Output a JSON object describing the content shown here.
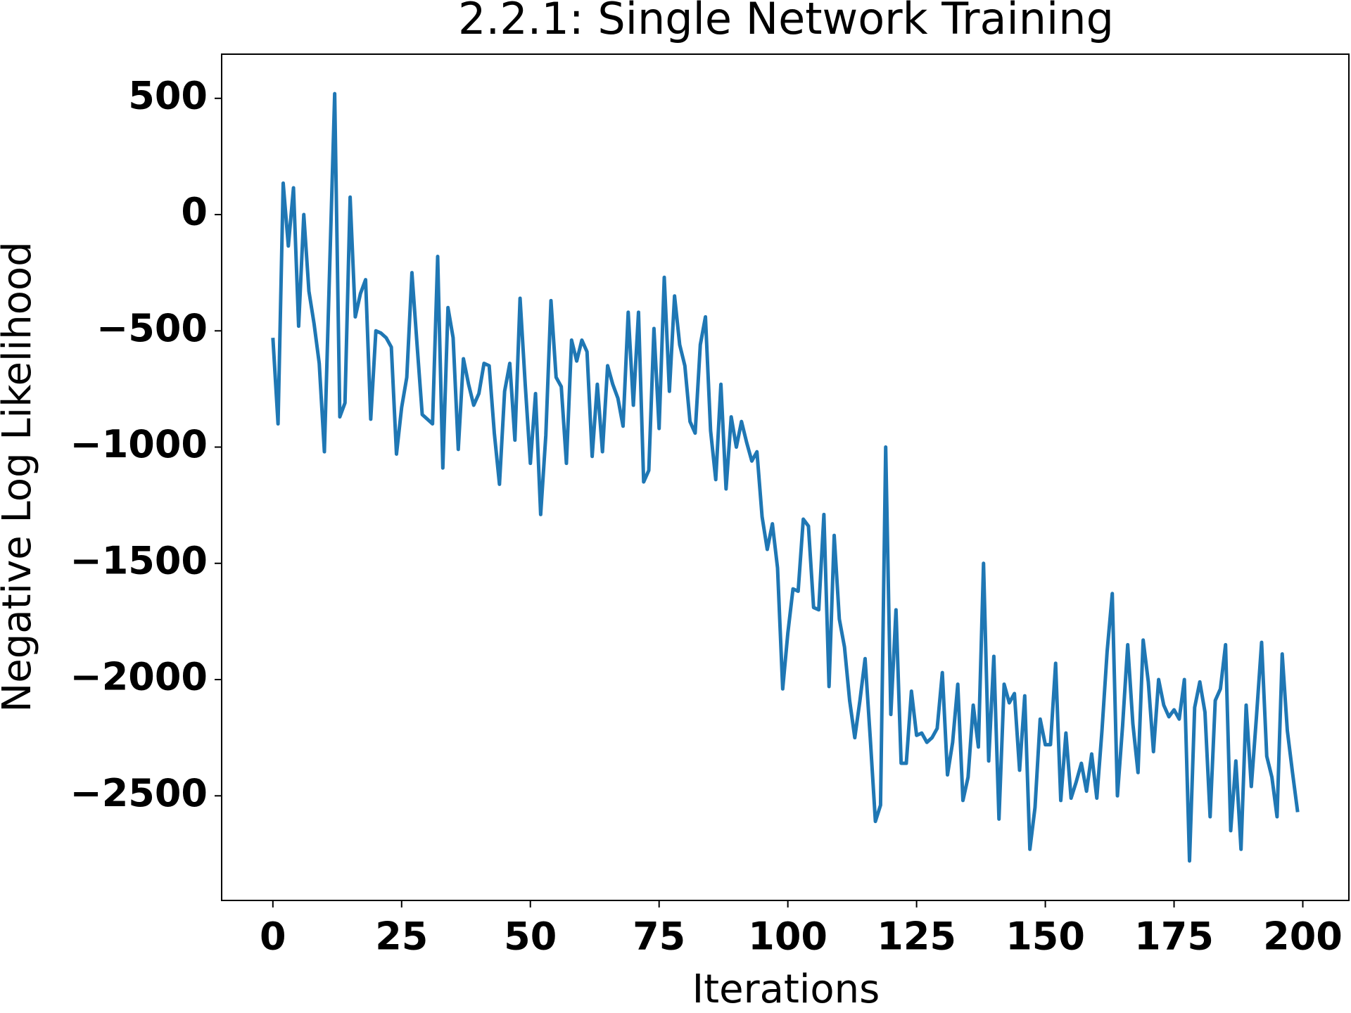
{
  "chart_data": {
    "type": "line",
    "title": "2.2.1: Single Network Training",
    "x_label": "Iterations",
    "y_label": "Negative Log Likelihood",
    "x": [
      0,
      1,
      2,
      3,
      4,
      5,
      6,
      7,
      8,
      9,
      10,
      11,
      12,
      13,
      14,
      15,
      16,
      17,
      18,
      19,
      20,
      21,
      22,
      23,
      24,
      25,
      26,
      27,
      28,
      29,
      30,
      31,
      32,
      33,
      34,
      35,
      36,
      37,
      38,
      39,
      40,
      41,
      42,
      43,
      44,
      45,
      46,
      47,
      48,
      49,
      50,
      51,
      52,
      53,
      54,
      55,
      56,
      57,
      58,
      59,
      60,
      61,
      62,
      63,
      64,
      65,
      66,
      67,
      68,
      69,
      70,
      71,
      72,
      73,
      74,
      75,
      76,
      77,
      78,
      79,
      80,
      81,
      82,
      83,
      84,
      85,
      86,
      87,
      88,
      89,
      90,
      91,
      92,
      93,
      94,
      95,
      96,
      97,
      98,
      99,
      100,
      101,
      102,
      103,
      104,
      105,
      106,
      107,
      108,
      109,
      110,
      111,
      112,
      113,
      114,
      115,
      116,
      117,
      118,
      119,
      120,
      121,
      122,
      123,
      124,
      125,
      126,
      127,
      128,
      129,
      130,
      131,
      132,
      133,
      134,
      135,
      136,
      137,
      138,
      139,
      140,
      141,
      142,
      143,
      144,
      145,
      146,
      147,
      148,
      149,
      150,
      151,
      152,
      153,
      154,
      155,
      156,
      157,
      158,
      159,
      160,
      161,
      162,
      163,
      164,
      165,
      166,
      167,
      168,
      169,
      170,
      171,
      172,
      173,
      174,
      175,
      176,
      177,
      178,
      179,
      180,
      181,
      182,
      183,
      184,
      185,
      186,
      187,
      188,
      189,
      190,
      191,
      192,
      193,
      194,
      195,
      196,
      197,
      198,
      199
    ],
    "series": [
      {
        "name": "Negative Log Likelihood",
        "color": "#1f77b4",
        "values": [
          -530,
          -900,
          135,
          -135,
          115,
          -480,
          0,
          -330,
          -470,
          -640,
          -1020,
          -250,
          520,
          -870,
          -810,
          75,
          -440,
          -340,
          -280,
          -880,
          -500,
          -510,
          -530,
          -570,
          -1030,
          -830,
          -700,
          -250,
          -560,
          -860,
          -880,
          -900,
          -180,
          -1090,
          -400,
          -530,
          -1010,
          -620,
          -730,
          -820,
          -770,
          -640,
          -650,
          -940,
          -1160,
          -760,
          -640,
          -970,
          -360,
          -730,
          -1070,
          -770,
          -1290,
          -950,
          -370,
          -700,
          -740,
          -1070,
          -540,
          -630,
          -540,
          -590,
          -1040,
          -730,
          -1020,
          -650,
          -730,
          -790,
          -910,
          -420,
          -820,
          -420,
          -1150,
          -1100,
          -490,
          -920,
          -270,
          -760,
          -350,
          -560,
          -650,
          -890,
          -940,
          -560,
          -440,
          -930,
          -1140,
          -730,
          -1180,
          -870,
          -1000,
          -890,
          -980,
          -1060,
          -1020,
          -1300,
          -1440,
          -1330,
          -1520,
          -2040,
          -1800,
          -1610,
          -1620,
          -1310,
          -1340,
          -1690,
          -1700,
          -1290,
          -2030,
          -1380,
          -1740,
          -1860,
          -2090,
          -2250,
          -2090,
          -1910,
          -2250,
          -2610,
          -2540,
          -1000,
          -2150,
          -1700,
          -2360,
          -2360,
          -2050,
          -2240,
          -2230,
          -2270,
          -2250,
          -2210,
          -1970,
          -2410,
          -2270,
          -2020,
          -2520,
          -2420,
          -2110,
          -2290,
          -1500,
          -2350,
          -1900,
          -2600,
          -2020,
          -2100,
          -2060,
          -2390,
          -2070,
          -2730,
          -2550,
          -2170,
          -2280,
          -2280,
          -1930,
          -2520,
          -2230,
          -2510,
          -2440,
          -2360,
          -2480,
          -2320,
          -2510,
          -2220,
          -1880,
          -1630,
          -2500,
          -2200,
          -1850,
          -2190,
          -2400,
          -1830,
          -2010,
          -2310,
          -2000,
          -2110,
          -2160,
          -2130,
          -2170,
          -2000,
          -2780,
          -2120,
          -2010,
          -2140,
          -2590,
          -2090,
          -2040,
          -1850,
          -2650,
          -2350,
          -2730,
          -2110,
          -2460,
          -2160,
          -1840,
          -2330,
          -2420,
          -2590,
          -1890,
          -2220,
          -2400,
          -2570
        ]
      }
    ],
    "xlim": [
      -9.95,
      208.95
    ],
    "xticks": [
      0,
      25,
      50,
      75,
      100,
      125,
      150,
      175,
      200
    ],
    "ylim": [
      -2950,
      690
    ],
    "yticks": [
      {
        "value": -2500,
        "label": "−2500"
      },
      {
        "value": -2000,
        "label": "−2000"
      },
      {
        "value": -1500,
        "label": "−1500"
      },
      {
        "value": -1000,
        "label": "−1000"
      },
      {
        "value": -500,
        "label": "−500"
      },
      0,
      500
    ],
    "grid": false
  }
}
